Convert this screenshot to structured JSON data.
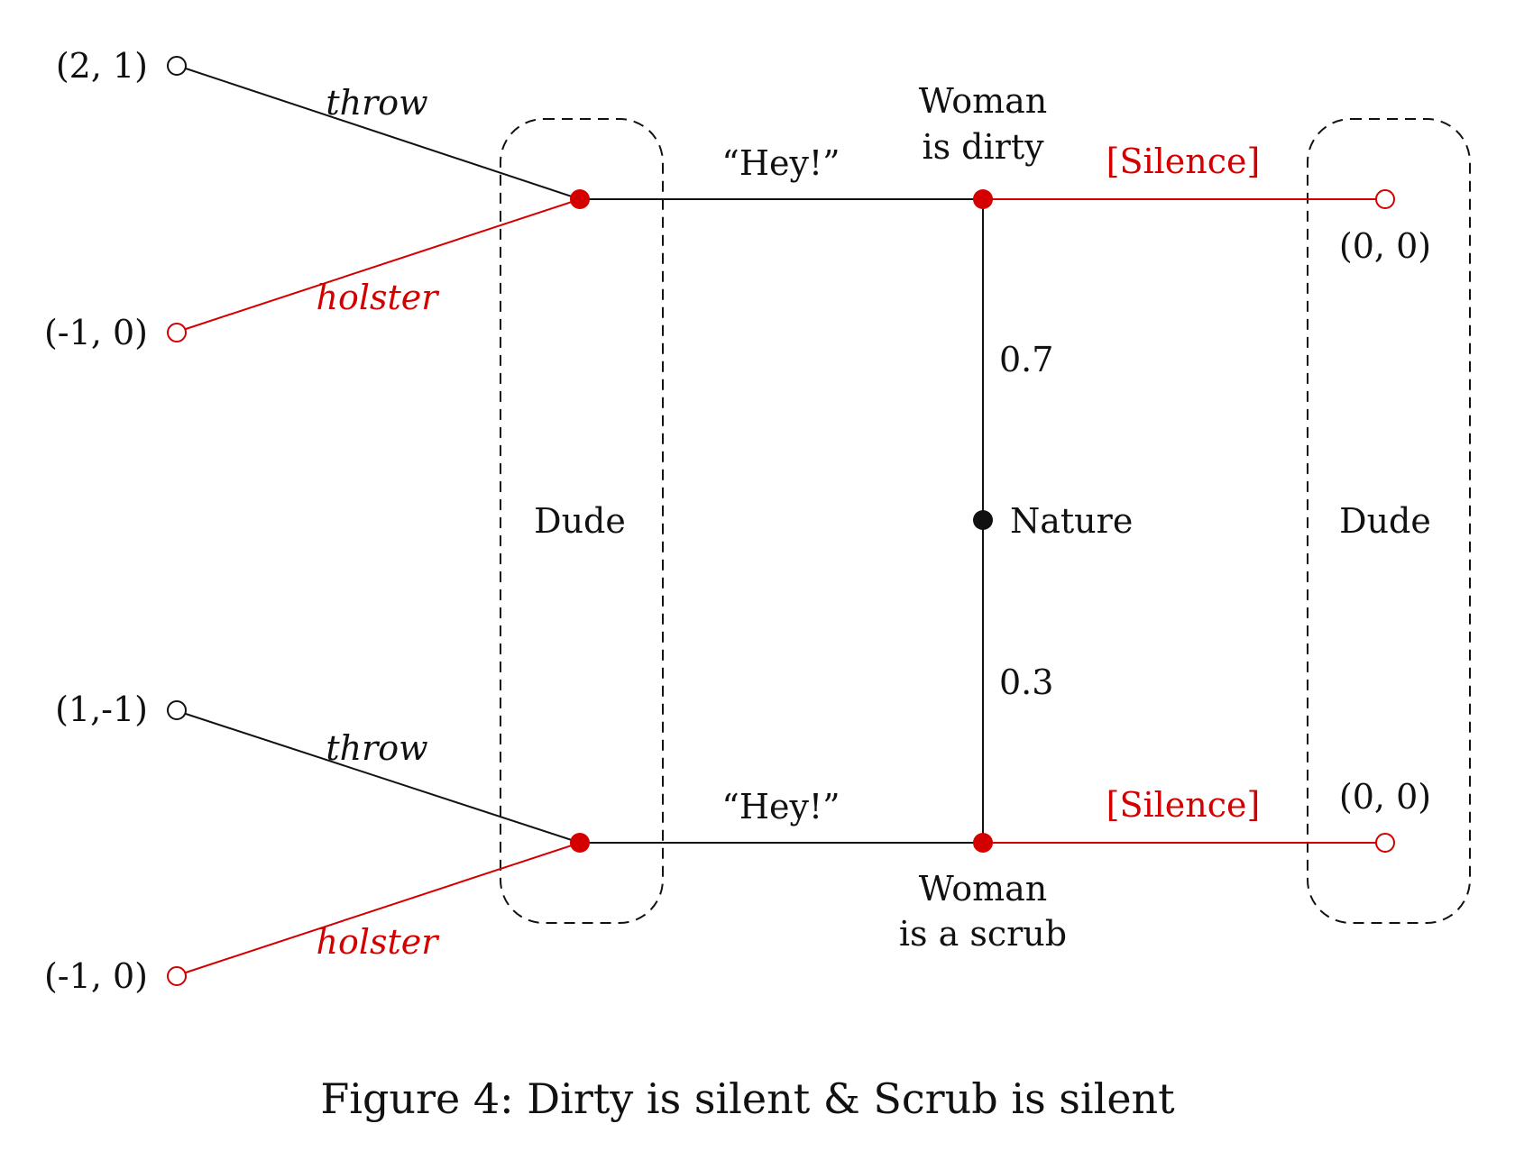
{
  "colors": {
    "equilibrium": "#d40000",
    "default": "#111111"
  },
  "caption": "Figure 4: Dirty is silent & Scrub is silent",
  "nature": {
    "label": "Nature",
    "prob_dirty": "0.7",
    "prob_scrub": "0.3"
  },
  "woman_dirty": {
    "line1": "Woman",
    "line2": "is dirty"
  },
  "woman_scrub": {
    "line1": "Woman",
    "line2": "is a scrub"
  },
  "messages": {
    "hey_top": "“Hey!”",
    "hey_bottom": "“Hey!”",
    "silence_top": "[Silence]",
    "silence_bottom": "[Silence]"
  },
  "infosets": {
    "left": "Dude",
    "right": "Dude"
  },
  "actions": {
    "throw_top": "throw",
    "holster_top": "holster",
    "throw_bottom": "throw",
    "holster_bottom": "holster"
  },
  "payoffs": {
    "top_throw": "(2, 1)",
    "top_holster": "(-1, 0)",
    "bottom_throw": "(1,-1)",
    "bottom_holster": "(-1, 0)",
    "right_top": "(0, 0)",
    "right_bottom": "(0, 0)"
  }
}
